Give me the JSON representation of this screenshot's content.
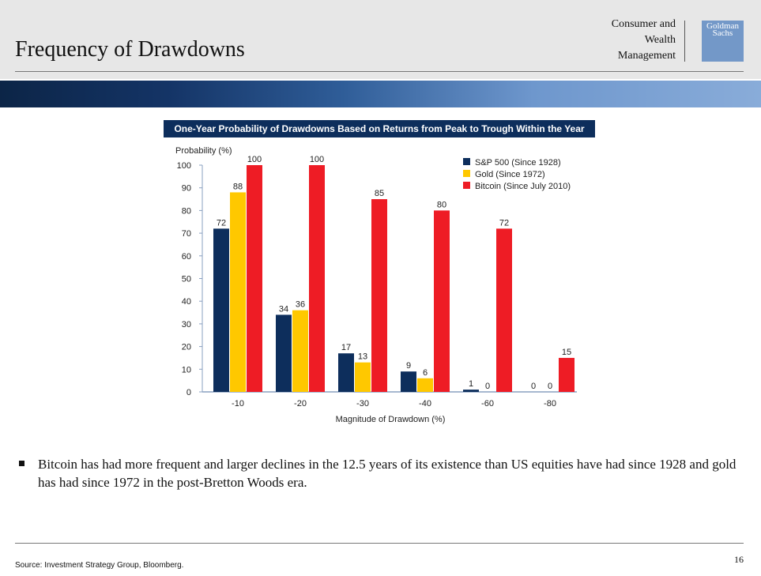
{
  "slide": {
    "title": "Frequency of Drawdowns",
    "division_line1": "Consumer and",
    "division_line2": "Wealth",
    "division_line3": "Management",
    "logo_line1": "Goldman",
    "logo_line2": "Sachs",
    "bullet": "Bitcoin has had more frequent and larger declines in the 12.5 years of its existence than US equities have had since 1928 and gold has had since 1972 in the post-Bretton Woods era.",
    "source": "Source: Investment Strategy Group, Bloomberg.",
    "page_number": "16"
  },
  "chart_data": {
    "type": "bar",
    "title": "One-Year Probability of Drawdowns Based on Returns from Peak to Trough Within the Year",
    "ylabel": "Probability (%)",
    "xlabel": "Magnitude of Drawdown (%)",
    "ylim": [
      0,
      100
    ],
    "yticks": [
      "0",
      "10",
      "20",
      "30",
      "40",
      "50",
      "60",
      "70",
      "80",
      "90",
      "100"
    ],
    "categories": [
      "-10",
      "-20",
      "-30",
      "-40",
      "-60",
      "-80"
    ],
    "legend_position": "top-right",
    "series": [
      {
        "name": "S&P 500 (Since 1928)",
        "color": "#0d2e5c",
        "values": [
          72,
          34,
          17,
          9,
          1,
          0
        ]
      },
      {
        "name": "Gold (Since 1972)",
        "color": "#ffc800",
        "values": [
          88,
          36,
          13,
          6,
          0,
          0
        ]
      },
      {
        "name": "Bitcoin (Since July 2010)",
        "color": "#ee1c25",
        "values": [
          100,
          100,
          85,
          80,
          72,
          15
        ]
      }
    ]
  }
}
